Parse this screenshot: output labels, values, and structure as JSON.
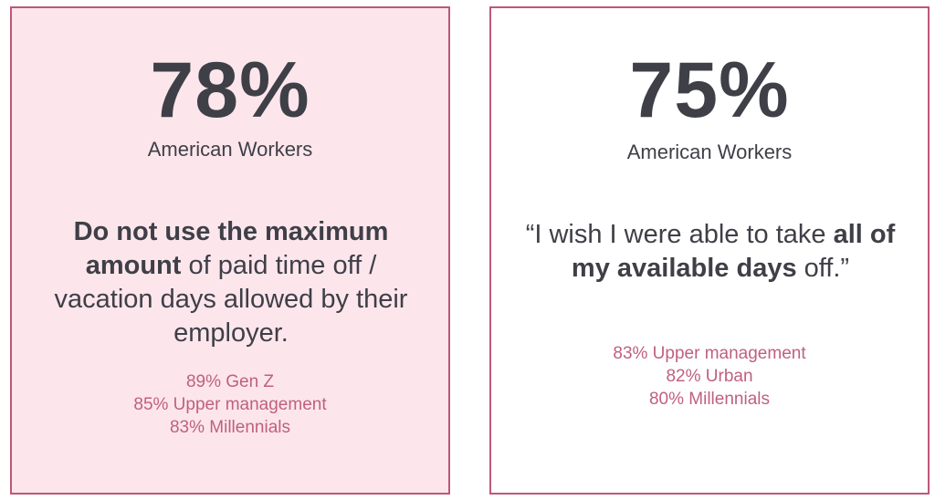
{
  "left_card": {
    "stat": "78%",
    "audience": "American Workers",
    "statement": {
      "bold1": "Do not use the maximum amount",
      "rest": " of paid time off / vacation days allowed by their employer."
    },
    "breakdown": [
      "89% Gen Z",
      "85% Upper management",
      "83% Millennials"
    ]
  },
  "right_card": {
    "stat": "75%",
    "audience": "American Workers",
    "statement": {
      "pre": "“I wish I were able to take ",
      "bold": "all of my available days",
      "post": " off.”"
    },
    "breakdown": [
      "83% Upper management",
      "82% Urban",
      "80% Millennials"
    ]
  },
  "colors": {
    "border": "#bd5878",
    "left_bg": "#fce6ec",
    "text": "#3f3f47",
    "accent": "#c0607e"
  }
}
